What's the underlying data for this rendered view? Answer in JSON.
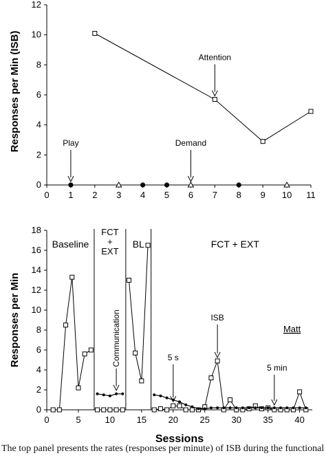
{
  "chart_data": [
    {
      "type": "line",
      "ylabel": "Responses per Min (ISB)",
      "xlim": [
        0,
        11
      ],
      "ylim": [
        0,
        12
      ],
      "xticks": [
        0,
        1,
        2,
        3,
        4,
        5,
        6,
        7,
        8,
        9,
        10,
        11
      ],
      "yticks": [
        0,
        2,
        4,
        6,
        8,
        10,
        12
      ],
      "grid": false,
      "series": [
        {
          "name": "Attention",
          "marker": "open-square",
          "x": [
            2,
            7,
            9,
            11
          ],
          "y": [
            10.1,
            5.7,
            2.9,
            4.9
          ]
        },
        {
          "name": "Play",
          "marker": "filled-circle",
          "x": [
            1,
            4,
            5,
            8
          ],
          "y": [
            0,
            0,
            0,
            0
          ]
        },
        {
          "name": "Demand",
          "marker": "open-triangle",
          "x": [
            3,
            6,
            10
          ],
          "y": [
            0,
            0,
            0
          ]
        }
      ],
      "annotations": [
        {
          "text": "Attention",
          "x": 7,
          "y": 5.7
        },
        {
          "text": "Play",
          "x": 1,
          "y": 0
        },
        {
          "text": "Demand",
          "x": 6,
          "y": 0
        }
      ]
    },
    {
      "type": "line",
      "xlabel": "Sessions",
      "ylabel": "Responses per Min",
      "xlim": [
        0,
        42
      ],
      "ylim": [
        0,
        18
      ],
      "xticks": [
        0,
        5,
        10,
        15,
        20,
        25,
        30,
        35,
        40
      ],
      "yticks": [
        0,
        2,
        4,
        6,
        8,
        10,
        12,
        14,
        16,
        18
      ],
      "grid": false,
      "phases": [
        {
          "label": "Baseline",
          "end": 7.5
        },
        {
          "label": "FCT + EXT",
          "lines": [
            "FCT",
            "+",
            "EXT"
          ],
          "end": 12.5
        },
        {
          "label": "BL",
          "end": 16.5
        },
        {
          "label": "FCT + EXT"
        }
      ],
      "series": [
        {
          "name": "ISB",
          "marker": "open-square",
          "x": [
            1,
            2,
            3,
            4,
            5,
            6,
            7,
            8,
            9,
            10,
            11,
            12,
            13,
            14,
            15,
            16,
            17,
            18,
            19,
            20,
            21,
            22,
            23,
            24,
            25,
            26,
            27,
            28,
            29,
            30,
            31,
            32,
            33,
            34,
            35,
            36,
            37,
            38,
            39,
            40,
            41
          ],
          "y": [
            0,
            0,
            8.5,
            13.3,
            2.2,
            5.6,
            6,
            0,
            0,
            0,
            0,
            0,
            13,
            5.7,
            2.9,
            16.5,
            0,
            0.1,
            0,
            0.4,
            0.4,
            0,
            0,
            0,
            0.3,
            3.2,
            4.9,
            0,
            1,
            0,
            0,
            0.1,
            0.4,
            0.1,
            0.2,
            0,
            0,
            0,
            0,
            1.8,
            0
          ]
        },
        {
          "name": "Communication",
          "marker": "filled-circle-small",
          "segments": [
            {
              "x": [
                8,
                9,
                10,
                11,
                12
              ],
              "y": [
                1.6,
                1.5,
                1.4,
                1.6,
                1.6
              ]
            },
            {
              "x": [
                17,
                18,
                19,
                20,
                21,
                22,
                23,
                24,
                25,
                26,
                27,
                28,
                29,
                30,
                31,
                32,
                33,
                34,
                35,
                36,
                37,
                38,
                39,
                40,
                41
              ],
              "y": [
                1.5,
                1.4,
                1.2,
                1,
                0.8,
                0.5,
                0.3,
                0.1,
                0.1,
                0.2,
                0.2,
                0.2,
                0.2,
                0.2,
                0.2,
                0.2,
                0.2,
                0.2,
                0.2,
                0.2,
                0.2,
                0.2,
                0.2,
                0.2,
                0.2
              ]
            }
          ]
        }
      ],
      "annotations": [
        {
          "text": "Communication",
          "x": 11,
          "y": 1.6
        },
        {
          "text": "5 s",
          "x": 20,
          "y": 0.4
        },
        {
          "text": "ISB",
          "x": 27,
          "y": 4.9
        },
        {
          "text": "5 min",
          "x": 36,
          "y": 0
        },
        {
          "text": "Matt"
        }
      ]
    }
  ],
  "caption": "The top panel presents the rates (responses per minute) of ISB during the functional"
}
